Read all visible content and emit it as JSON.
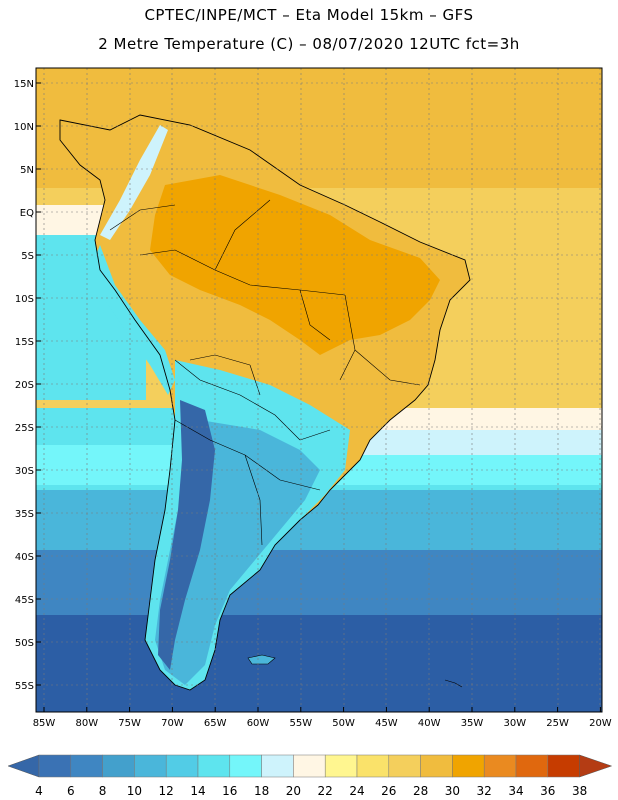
{
  "title_line1": "CPTEC/INPE/MCT –  Eta Model 15km – GFS",
  "title_line2": "2 Metre Temperature (C) – 08/07/2020 12UTC fct=3h",
  "lat_labels": [
    "15N",
    "10N",
    "5N",
    "EQ",
    "5S",
    "10S",
    "15S",
    "20S",
    "25S",
    "30S",
    "35S",
    "40S",
    "45S",
    "50S",
    "55S"
  ],
  "lon_labels": [
    "85W",
    "80W",
    "75W",
    "70W",
    "65W",
    "60W",
    "55W",
    "50W",
    "45W",
    "40W",
    "35W",
    "30W",
    "25W",
    "20W"
  ],
  "legend": {
    "labels": [
      "4",
      "6",
      "8",
      "10",
      "12",
      "14",
      "16",
      "18",
      "20",
      "22",
      "24",
      "26",
      "28",
      "30",
      "32",
      "34",
      "36",
      "38"
    ],
    "colors": [
      "#3a72b4",
      "#3f86c2",
      "#43a0cc",
      "#4ab6da",
      "#52cce6",
      "#5ee4ee",
      "#74f6fa",
      "#cef3fc",
      "#fff6e4",
      "#fff690",
      "#fae26a",
      "#f4cf5c",
      "#f0bc3e",
      "#f0a400",
      "#ea8a20",
      "#e0680e",
      "#c63c00"
    ],
    "end_left_color": "#3567a8",
    "end_right_color": "#b43c14"
  },
  "map_colors": {
    "ocean_south": "#2c5ea5",
    "ocean_mid": "#3f86c2",
    "ocean_cool": "#4ab6da",
    "ocean_cyan": "#5ee4ee",
    "ocean_light": "#74f6fa",
    "ocean_white": "#cef3fc",
    "ocean_cream": "#fff6e4",
    "ocean_warm": "#f4cf5c",
    "ocean_north": "#f0bc3e",
    "land_hot": "#f0a400",
    "land_warm": "#f0bc3e",
    "andes": "#3567a8",
    "patagonia": "#4ab6da",
    "coast": "#000000"
  }
}
